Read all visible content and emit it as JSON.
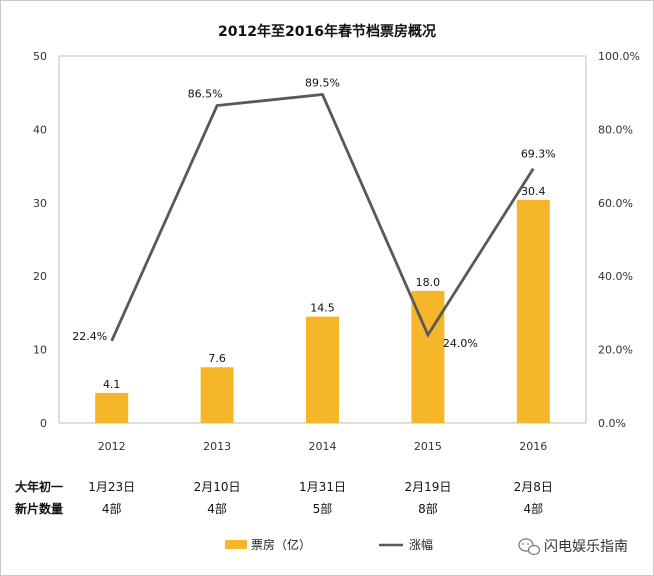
{
  "chart_data": {
    "type": "bar",
    "title": "2012年至2016年春节档票房概况",
    "categories": [
      "2012",
      "2013",
      "2014",
      "2015",
      "2016"
    ],
    "series": [
      {
        "name": "票房（亿）",
        "kind": "bar",
        "axis": "left",
        "values": [
          4.1,
          7.6,
          14.5,
          18.0,
          30.4
        ],
        "labels": [
          "4.1",
          "7.6",
          "14.5",
          "18.0",
          "30.4"
        ]
      },
      {
        "name": "涨幅",
        "kind": "line",
        "axis": "right",
        "values": [
          22.4,
          86.5,
          89.5,
          24.0,
          69.3
        ],
        "labels": [
          "22.4%",
          "86.5%",
          "89.5%",
          "24.0%",
          "69.3%"
        ]
      }
    ],
    "y_left": {
      "min": 0,
      "max": 50,
      "ticks": [
        "0",
        "10",
        "20",
        "30",
        "40",
        "50"
      ]
    },
    "y_right": {
      "min": 0,
      "max": 100,
      "ticks": [
        "0.0%",
        "20.0%",
        "40.0%",
        "60.0%",
        "80.0%",
        "100.0%"
      ]
    },
    "grid": false,
    "legend_position": "bottom",
    "colors": {
      "bar": "#F5B62A",
      "line": "#595959",
      "axis": "#bfbfbf"
    }
  },
  "table": {
    "rows": [
      {
        "label": "大年初一",
        "values": [
          "1月23日",
          "2月10日",
          "1月31日",
          "2月19日",
          "2月8日"
        ]
      },
      {
        "label": "新片数量",
        "values": [
          "4部",
          "4部",
          "5部",
          "8部",
          "4部"
        ]
      }
    ]
  },
  "watermark": {
    "text": "闪电娱乐指南",
    "icon": "wechat-icon"
  }
}
